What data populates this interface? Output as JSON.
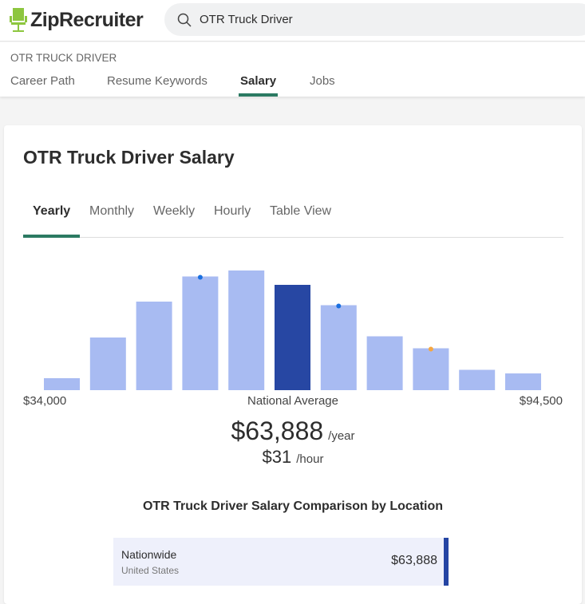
{
  "header": {
    "brand": "ZipRecruiter",
    "search_value": "OTR Truck Driver"
  },
  "subnav": {
    "breadcrumb": "OTR TRUCK DRIVER",
    "tabs": [
      {
        "label": "Career Path"
      },
      {
        "label": "Resume Keywords"
      },
      {
        "label": "Salary",
        "active": true
      },
      {
        "label": "Jobs"
      }
    ]
  },
  "card": {
    "title": "OTR Truck Driver Salary",
    "period_tabs": [
      {
        "label": "Yearly",
        "active": true
      },
      {
        "label": "Monthly"
      },
      {
        "label": "Weekly"
      },
      {
        "label": "Hourly"
      },
      {
        "label": "Table View"
      }
    ],
    "min_label": "$34,000",
    "max_label": "$94,500",
    "avg_label": "National Average",
    "yearly": "$63,888",
    "yearly_unit": "/year",
    "hourly": "$31",
    "hourly_unit": "/hour",
    "comparison_title": "OTR Truck Driver Salary Comparison by Location",
    "comparison_rows": [
      {
        "name": "Nationwide",
        "country": "United States",
        "value": "$63,888"
      }
    ]
  },
  "chart_data": {
    "type": "bar",
    "xlim": [
      34000,
      94500
    ],
    "values": [
      10,
      44,
      74,
      95,
      100,
      88,
      71,
      45,
      35,
      17,
      14
    ],
    "highlight_index": 5,
    "markers": [
      {
        "index": 3,
        "color": "#1a6fe0"
      },
      {
        "index": 6,
        "color": "#1a6fe0"
      },
      {
        "index": 8,
        "color": "#f5a742"
      }
    ],
    "colors": {
      "bar": "#a8bbf2",
      "highlight": "#2747a3"
    }
  }
}
